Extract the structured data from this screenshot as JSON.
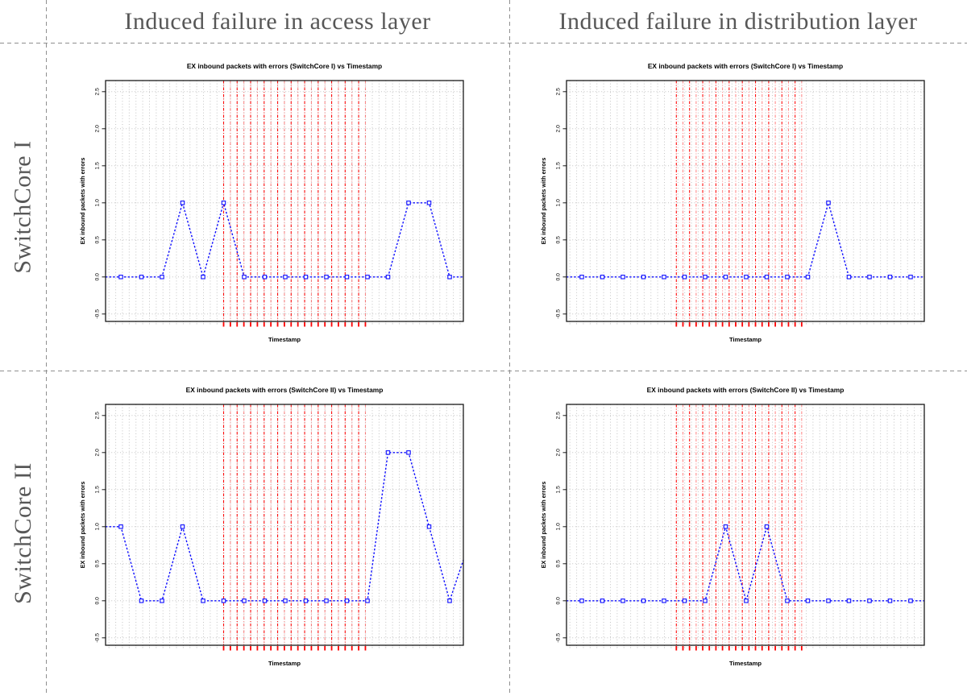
{
  "page": {
    "background": "#ffffff",
    "divider_color": "#8f8f8f",
    "header_text_color": "#575757"
  },
  "grid": {
    "column_headers": [
      {
        "label": "Induced failure in access layer"
      },
      {
        "label": "Induced failure in distribution layer"
      }
    ],
    "row_headers": [
      {
        "label": "SwitchCore I"
      },
      {
        "label": "SwitchCore II"
      }
    ]
  },
  "chart_data": [
    {
      "type": "line",
      "row": "SwitchCore I",
      "column": "Induced failure in access layer",
      "title": "EX inbound packets with errors (SwitchCore I) vs Timestamp",
      "xlabel": "Timestamp",
      "ylabel": "EX inbound packets with errors",
      "ylim": [
        -0.6,
        2.65
      ],
      "yticks": [
        -0.5,
        0.0,
        0.5,
        1.0,
        1.5,
        2.0,
        2.5
      ],
      "ytick_labels": [
        "-0.5",
        "0.0",
        "0.5",
        "1.0",
        "1.5",
        "2.0",
        "2.5"
      ],
      "values": [
        0,
        0,
        0,
        1,
        0,
        1,
        0,
        0,
        0,
        0,
        0,
        0,
        0,
        0,
        1,
        1,
        0
      ],
      "edge_values": {
        "left": 0,
        "right": 0
      },
      "failure_window": {
        "start_index": 5.0,
        "end_index": 11.9
      },
      "line_color": "#0d0dff",
      "failure_line_color": "#ff0000",
      "grid_color": "#c3c3c3",
      "grid": true,
      "legend": "none",
      "marker": "open-square"
    },
    {
      "type": "line",
      "row": "SwitchCore I",
      "column": "Induced failure in distribution layer",
      "title": "EX inbound packets with errors (SwitchCore I) vs Timestamp",
      "xlabel": "Timestamp",
      "ylabel": "EX inbound packets with errors",
      "ylim": [
        -0.6,
        2.65
      ],
      "yticks": [
        -0.5,
        0.0,
        0.5,
        1.0,
        1.5,
        2.0,
        2.5
      ],
      "ytick_labels": [
        "-0.5",
        "0.0",
        "0.5",
        "1.0",
        "1.5",
        "2.0",
        "2.5"
      ],
      "values": [
        0,
        0,
        0,
        0,
        0,
        0,
        0,
        0,
        0,
        0,
        0,
        0,
        1,
        0,
        0,
        0,
        0
      ],
      "edge_values": {
        "left": 0,
        "right": 0
      },
      "failure_window": {
        "start_index": 4.6,
        "end_index": 10.7
      },
      "line_color": "#0d0dff",
      "failure_line_color": "#ff0000",
      "grid_color": "#c3c3c3",
      "grid": true,
      "legend": "none",
      "marker": "open-square"
    },
    {
      "type": "line",
      "row": "SwitchCore II",
      "column": "Induced failure in access layer",
      "title": "EX inbound packets with errors (SwitchCore II) vs Timestamp",
      "xlabel": "Timestamp",
      "ylabel": "EX inbound packets with errors",
      "ylim": [
        -0.6,
        2.65
      ],
      "yticks": [
        -0.5,
        0.0,
        0.5,
        1.0,
        1.5,
        2.0,
        2.5
      ],
      "ytick_labels": [
        "-0.5",
        "0.0",
        "0.5",
        "1.0",
        "1.5",
        "2.0",
        "2.5"
      ],
      "values": [
        1,
        0,
        0,
        1,
        0,
        0,
        0,
        0,
        0,
        0,
        0,
        0,
        0,
        2,
        2,
        1,
        0
      ],
      "edge_values": {
        "left": 1,
        "right": 0.55
      },
      "failure_window": {
        "start_index": 5.0,
        "end_index": 11.9
      },
      "line_color": "#0d0dff",
      "failure_line_color": "#ff0000",
      "grid_color": "#c3c3c3",
      "grid": true,
      "legend": "none",
      "marker": "open-square"
    },
    {
      "type": "line",
      "row": "SwitchCore II",
      "column": "Induced failure in distribution layer",
      "title": "EX inbound packets with errors (SwitchCore II) vs Timestamp",
      "xlabel": "Timestamp",
      "ylabel": "EX inbound packets with errors",
      "ylim": [
        -0.6,
        2.65
      ],
      "yticks": [
        -0.5,
        0.0,
        0.5,
        1.0,
        1.5,
        2.0,
        2.5
      ],
      "ytick_labels": [
        "-0.5",
        "0.0",
        "0.5",
        "1.0",
        "1.5",
        "2.0",
        "2.5"
      ],
      "values": [
        0,
        0,
        0,
        0,
        0,
        0,
        0,
        1,
        0,
        1,
        0,
        0,
        0,
        0,
        0,
        0,
        0
      ],
      "edge_values": {
        "left": 0,
        "right": 0
      },
      "failure_window": {
        "start_index": 4.6,
        "end_index": 10.7
      },
      "line_color": "#0d0dff",
      "failure_line_color": "#ff0000",
      "grid_color": "#c3c3c3",
      "grid": true,
      "legend": "none",
      "marker": "open-square"
    }
  ]
}
